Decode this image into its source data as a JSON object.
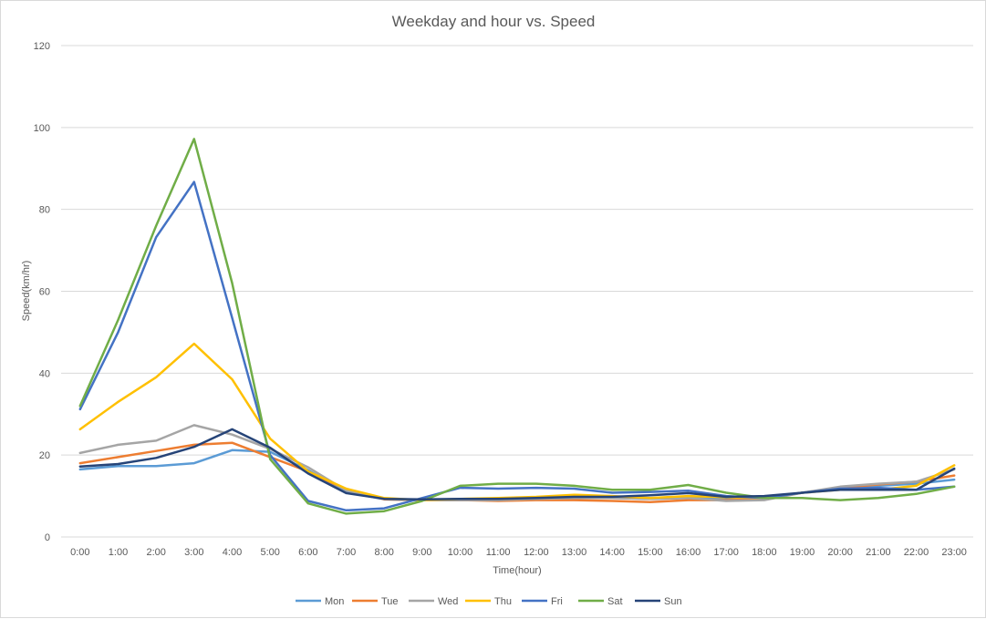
{
  "chart_data": {
    "type": "line",
    "title": "Weekday and hour vs. Speed",
    "xlabel": "Time(hour)",
    "ylabel": "Speed(km/hr)",
    "ylim": [
      0,
      120
    ],
    "yticks": [
      0,
      20,
      40,
      60,
      80,
      100,
      120
    ],
    "grid": true,
    "legend": "bottom",
    "categories": [
      "0:00",
      "1:00",
      "2:00",
      "3:00",
      "4:00",
      "5:00",
      "6:00",
      "7:00",
      "8:00",
      "9:00",
      "10:00",
      "11:00",
      "12:00",
      "13:00",
      "14:00",
      "15:00",
      "16:00",
      "17:00",
      "18:00",
      "19:00",
      "20:00",
      "21:00",
      "22:00",
      "23:00"
    ],
    "series": [
      {
        "name": "Mon",
        "color": "#5b9bd5",
        "values": [
          16.5,
          17.3,
          17.3,
          18,
          21.2,
          20.8,
          16.3,
          11,
          9.2,
          9,
          9,
          9,
          9.3,
          9.5,
          9.5,
          9.3,
          9.5,
          9.2,
          9.4,
          10.8,
          12,
          12.5,
          13,
          14
        ]
      },
      {
        "name": "Tue",
        "color": "#ed7d31",
        "values": [
          18,
          19.5,
          21,
          22.5,
          23,
          19.5,
          16,
          11.5,
          9.2,
          9,
          9,
          8.8,
          9,
          9,
          8.8,
          8.5,
          9,
          9,
          9.2,
          10.8,
          12,
          12.8,
          13.5,
          15
        ]
      },
      {
        "name": "Wed",
        "color": "#a5a5a5",
        "values": [
          20.5,
          22.5,
          23.5,
          27.3,
          25,
          21.5,
          17,
          11.3,
          9.3,
          9,
          9,
          9,
          9.3,
          9.5,
          9.5,
          9.3,
          9.5,
          8.8,
          9,
          10.8,
          12.3,
          13,
          13.5,
          16.5
        ]
      },
      {
        "name": "Thu",
        "color": "#ffc000",
        "values": [
          26.3,
          33,
          39,
          47.2,
          38.5,
          24,
          16,
          11.8,
          9.5,
          9,
          9.3,
          9.5,
          9.8,
          10.3,
          10,
          9.5,
          10,
          9.7,
          9.5,
          10.8,
          11.5,
          11.5,
          12.5,
          17.5
        ]
      },
      {
        "name": "Fri",
        "color": "#4472c4",
        "values": [
          31.2,
          50,
          73.2,
          86.7,
          53.5,
          20,
          8.8,
          6.5,
          7,
          9.5,
          12,
          11.8,
          12,
          11.8,
          10.8,
          11,
          11.3,
          10,
          9.5,
          10.8,
          11.8,
          12,
          11.5,
          12.3
        ]
      },
      {
        "name": "Sat",
        "color": "#70ad47",
        "values": [
          32,
          53,
          76,
          97.2,
          62,
          19,
          8.2,
          5.7,
          6.3,
          8.8,
          12.5,
          13,
          13,
          12.5,
          11.5,
          11.5,
          12.7,
          10.8,
          9.5,
          9.5,
          9,
          9.5,
          10.5,
          12.3
        ]
      },
      {
        "name": "Sun",
        "color": "#264478",
        "values": [
          17.2,
          17.8,
          19.3,
          22,
          26.3,
          21.8,
          15.5,
          10.7,
          9.3,
          9.2,
          9.3,
          9.3,
          9.5,
          9.8,
          9.8,
          10.2,
          10.7,
          9.8,
          10,
          10.8,
          11.5,
          11.5,
          11.5,
          16.7
        ]
      }
    ]
  }
}
